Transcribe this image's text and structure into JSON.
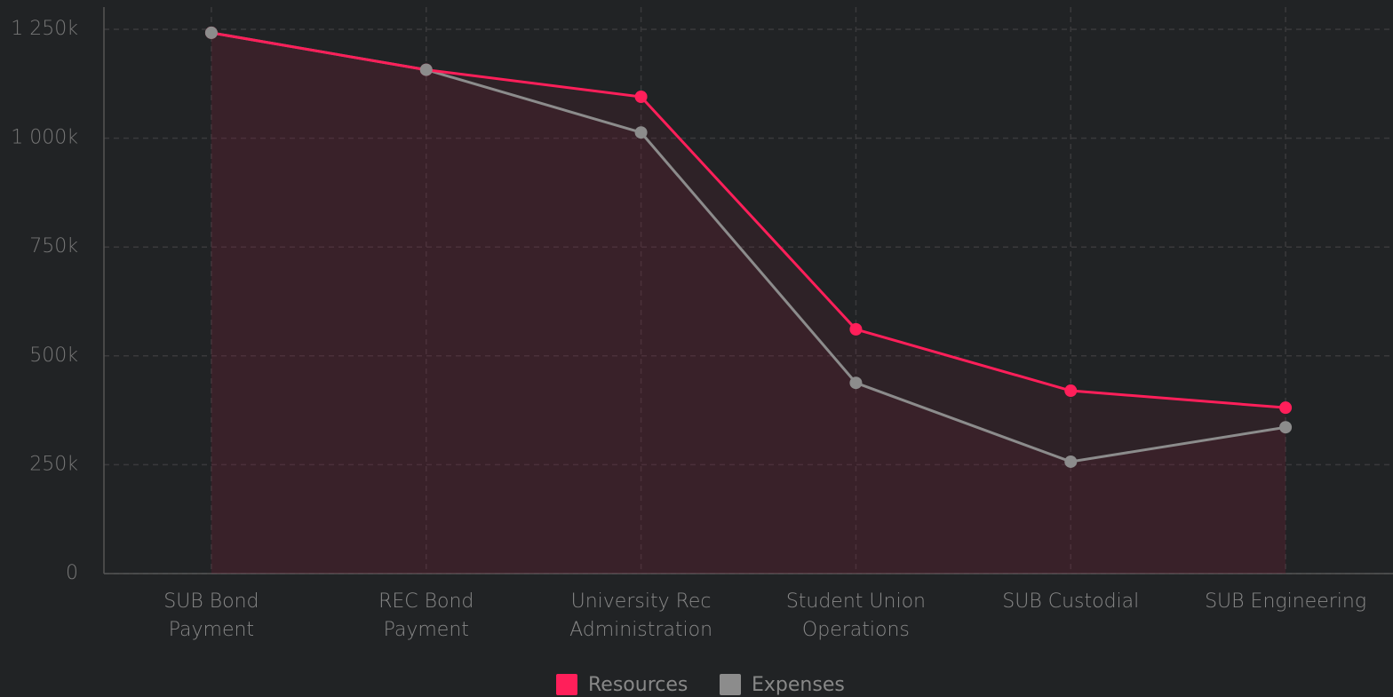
{
  "chart_data": {
    "type": "line",
    "categories": [
      "SUB Bond\nPayment",
      "REC Bond\nPayment",
      "University Rec\nAdministration",
      "Student Union\nOperations",
      "SUB Custodial",
      "SUB Engineering"
    ],
    "series": [
      {
        "name": "Resources",
        "color": "#ff1f5a",
        "values": [
          1242000,
          1157000,
          1095000,
          561000,
          420000,
          381000
        ]
      },
      {
        "name": "Expenses",
        "color": "#8c8c8c",
        "values": [
          1242000,
          1157000,
          1013000,
          438000,
          257000,
          336000
        ]
      }
    ],
    "ylim": [
      0,
      1250000
    ],
    "yticks": [
      0,
      {
        "value": 250000,
        "label": "250k"
      },
      {
        "value": 500000,
        "label": "500k"
      },
      {
        "value": 750000,
        "label": "750k"
      },
      {
        "value": 1000000,
        "label": "1 000k"
      },
      {
        "value": 1250000,
        "label": "1 250k"
      }
    ],
    "grid": true,
    "legend": "bottom"
  }
}
